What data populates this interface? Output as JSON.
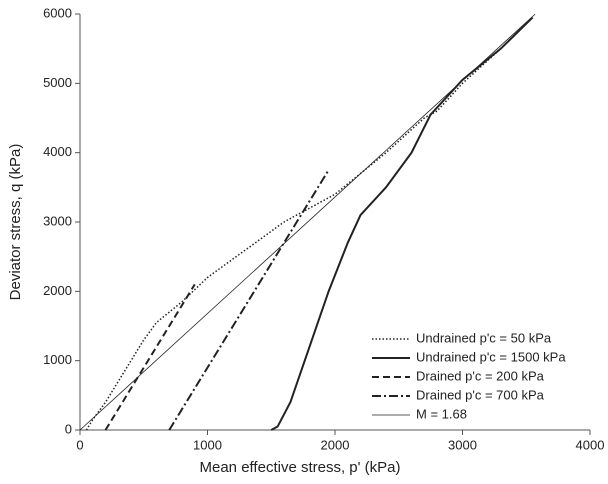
{
  "chart_data": {
    "type": "line",
    "x_label": "Mean effective stress, p' (kPa)",
    "y_label": "Deviator stress, q (kPa)",
    "xlim": [
      0,
      4000
    ],
    "ylim": [
      0,
      6000
    ],
    "xticks": [
      0,
      1000,
      2000,
      3000,
      4000
    ],
    "yticks": [
      0,
      1000,
      2000,
      3000,
      4000,
      5000,
      6000
    ],
    "grid": false,
    "legend": "lower right",
    "series": [
      {
        "name": "Undrained p'c = 50 kPa",
        "color": "#222222",
        "dash": "dotted",
        "width": 1.5,
        "x": [
          50,
          100,
          200,
          300,
          400,
          500,
          600,
          800,
          1000,
          1300,
          1600,
          2000,
          2400,
          2700,
          2800,
          3000,
          3300,
          3550
        ],
        "values": [
          0,
          150,
          400,
          700,
          1000,
          1300,
          1550,
          1850,
          2200,
          2600,
          3000,
          3400,
          4000,
          4500,
          4600,
          5000,
          5500,
          5950
        ]
      },
      {
        "name": "Undrained p'c = 1500 kPa",
        "color": "#222222",
        "dash": "solid",
        "width": 2,
        "x": [
          1500,
          1550,
          1650,
          1800,
          1950,
          2100,
          2200,
          2400,
          2600,
          2750,
          3000,
          3300,
          3550
        ],
        "values": [
          0,
          50,
          400,
          1200,
          2000,
          2700,
          3100,
          3500,
          4000,
          4550,
          5050,
          5500,
          5950
        ]
      },
      {
        "name": "Drained p'c = 200 kPa",
        "color": "#222222",
        "dash": "dashed",
        "width": 2,
        "x": [
          200,
          900
        ],
        "values": [
          0,
          2100
        ]
      },
      {
        "name": "Drained p'c = 700 kPa",
        "color": "#222222",
        "dash": "dashdot",
        "width": 2,
        "x": [
          700,
          1950
        ],
        "values": [
          0,
          3750
        ]
      },
      {
        "name": "M = 1.68",
        "color": "#222222",
        "dash": "solid",
        "width": 0.8,
        "x": [
          0,
          3570
        ],
        "values": [
          0,
          5998
        ]
      }
    ]
  }
}
